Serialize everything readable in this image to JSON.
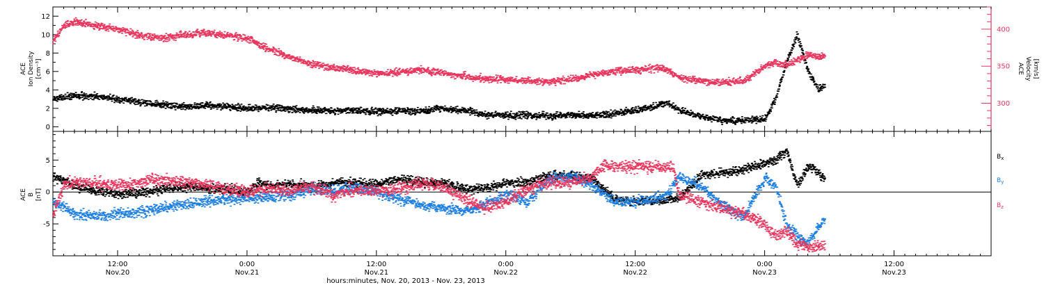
{
  "colors": {
    "axis": "#000000",
    "bx": "#000000",
    "by": "#1e7fe0",
    "bz": "#e8365e",
    "density": "#000000",
    "velocity": "#e8365e"
  },
  "xaxis": {
    "title": "hours:minutes, Nov. 20, 2013 - Nov. 23, 2013",
    "range_hours": [
      6.0,
      93.0
    ],
    "ticks": [
      {
        "hour": 12,
        "time": "12:00",
        "date": "Nov.20"
      },
      {
        "hour": 24,
        "time": "0:00",
        "date": "Nov.21"
      },
      {
        "hour": 36,
        "time": "12:00",
        "date": "Nov.21"
      },
      {
        "hour": 48,
        "time": "0:00",
        "date": "Nov.22"
      },
      {
        "hour": 60,
        "time": "12:00",
        "date": "Nov.22"
      },
      {
        "hour": 72,
        "time": "0:00",
        "date": "Nov.23"
      },
      {
        "hour": 84,
        "time": "12:00",
        "date": "Nov.23"
      }
    ]
  },
  "panel_top": {
    "left_label": [
      "ACE",
      "Ion Density",
      "[cm⁻³]"
    ],
    "right_label": [
      "ACE",
      "Velocity",
      "[km/s]"
    ]
  },
  "panel_bottom": {
    "left_label": [
      "ACE",
      "B",
      "[nT]"
    ],
    "legend": [
      "Bx",
      "By",
      "Bz"
    ]
  },
  "chart_data": [
    {
      "type": "scatter",
      "x_unit": "hours since Nov. 20, 2013 00:00",
      "ylim_left": [
        -0.5,
        13
      ],
      "yticks_left": [
        0,
        2,
        4,
        6,
        8,
        10,
        12
      ],
      "ylim_right": [
        262,
        430
      ],
      "yticks_right": [
        300,
        350,
        400
      ],
      "series": [
        {
          "name": "Ion Density",
          "axis": "left",
          "x": [
            6,
            8,
            10,
            12,
            14,
            16,
            18,
            20,
            22,
            24,
            26,
            28,
            30,
            32,
            34,
            36,
            38,
            40,
            42,
            44,
            46,
            48,
            50,
            52,
            54,
            56,
            58,
            60,
            62,
            63,
            64,
            66,
            68,
            70,
            72,
            73,
            74,
            75,
            76,
            77,
            77.6
          ],
          "y": [
            3.0,
            3.4,
            3.3,
            3.0,
            2.7,
            2.4,
            2.2,
            2.3,
            2.2,
            2.0,
            2.1,
            1.9,
            1.8,
            1.7,
            1.8,
            1.6,
            1.7,
            1.7,
            2.0,
            1.8,
            1.3,
            1.2,
            1.3,
            1.1,
            1.3,
            1.2,
            1.4,
            1.8,
            2.3,
            2.6,
            1.8,
            1.1,
            0.7,
            0.7,
            0.8,
            3.0,
            7.0,
            10.0,
            6.0,
            4.0,
            4.5
          ]
        },
        {
          "name": "Velocity",
          "axis": "right",
          "x": [
            6,
            7,
            8,
            10,
            12,
            14,
            16,
            18,
            20,
            22,
            24,
            25,
            26,
            28,
            30,
            32,
            34,
            36,
            38,
            40,
            42,
            44,
            46,
            48,
            50,
            52,
            54,
            56,
            58,
            60,
            62,
            63,
            64,
            66,
            68,
            70,
            72,
            73,
            74,
            76,
            77.6
          ],
          "y": [
            385,
            405,
            410,
            405,
            400,
            392,
            388,
            392,
            395,
            392,
            388,
            380,
            373,
            362,
            352,
            348,
            344,
            340,
            342,
            345,
            341,
            337,
            333,
            332,
            330,
            329,
            332,
            338,
            343,
            345,
            348,
            345,
            335,
            330,
            328,
            330,
            350,
            355,
            352,
            365,
            362
          ]
        }
      ]
    },
    {
      "type": "scatter",
      "x_unit": "hours since Nov. 20, 2013 00:00",
      "ylim": [
        -10,
        9.5
      ],
      "yticks": [
        -5,
        0,
        5
      ],
      "zero_line": true,
      "series": [
        {
          "name": "Bx",
          "x": [
            6,
            8,
            10,
            12,
            14,
            16,
            18,
            20,
            22,
            24,
            25,
            26,
            28,
            30,
            32,
            34,
            36,
            38,
            40,
            42,
            44,
            46,
            48,
            50,
            52,
            54,
            56,
            58,
            60,
            62,
            64,
            66,
            68,
            70,
            72,
            73,
            74,
            75,
            76,
            77,
            77.6
          ],
          "y": [
            2.5,
            1.0,
            0.2,
            -0.3,
            -0.2,
            0.5,
            0.8,
            0.5,
            0.5,
            0.0,
            1.5,
            1.0,
            1.2,
            1.0,
            1.5,
            1.5,
            1.2,
            2.0,
            1.5,
            1.5,
            0.5,
            0.5,
            1.5,
            1.5,
            2.5,
            2.5,
            2.0,
            -1.0,
            -1.5,
            -1.5,
            -1.0,
            2.5,
            3.0,
            3.5,
            4.5,
            5.0,
            6.5,
            1.0,
            4.0,
            3.0,
            2.0
          ]
        },
        {
          "name": "By",
          "x": [
            6,
            7,
            8,
            10,
            12,
            14,
            16,
            18,
            20,
            22,
            24,
            26,
            28,
            30,
            32,
            34,
            36,
            38,
            40,
            42,
            44,
            46,
            48,
            50,
            52,
            54,
            56,
            58,
            60,
            62,
            63,
            64,
            66,
            68,
            70,
            72,
            73,
            74,
            75,
            76,
            77.6
          ],
          "y": [
            -1.5,
            -2.5,
            -3.5,
            -3.8,
            -3.5,
            -3.2,
            -2.5,
            -2.0,
            -1.5,
            -1.2,
            -1.0,
            -0.8,
            -0.5,
            0.5,
            0.2,
            0.5,
            0.0,
            -1.0,
            -2.0,
            -2.5,
            -3.0,
            -2.0,
            -0.5,
            -1.5,
            2.0,
            2.5,
            1.0,
            -1.5,
            -1.5,
            -1.0,
            -0.5,
            2.5,
            1.0,
            -2.0,
            -4.0,
            2.0,
            1.0,
            -5.0,
            -7.0,
            -8.0,
            -4.0
          ]
        },
        {
          "name": "Bz",
          "x": [
            6,
            7,
            8,
            10,
            12,
            14,
            16,
            18,
            20,
            22,
            24,
            26,
            28,
            30,
            32,
            34,
            36,
            38,
            40,
            42,
            44,
            46,
            48,
            50,
            52,
            54,
            56,
            57,
            58,
            60,
            62,
            63.5,
            64,
            66,
            68,
            70,
            72,
            73,
            74,
            75,
            76,
            77.6
          ],
          "y": [
            -3.5,
            1.0,
            1.5,
            1.5,
            1.0,
            1.5,
            2.0,
            1.5,
            1.2,
            0.5,
            0.0,
            0.5,
            0.2,
            1.0,
            -0.5,
            0.5,
            0.0,
            0.5,
            1.5,
            1.0,
            -1.0,
            -2.5,
            -1.5,
            0.5,
            1.5,
            1.5,
            2.5,
            4.0,
            4.0,
            4.0,
            4.0,
            4.0,
            -0.5,
            -1.5,
            -2.5,
            -3.5,
            -5.0,
            -7.0,
            -6.0,
            -8.0,
            -8.5,
            -8.5
          ]
        }
      ]
    }
  ]
}
